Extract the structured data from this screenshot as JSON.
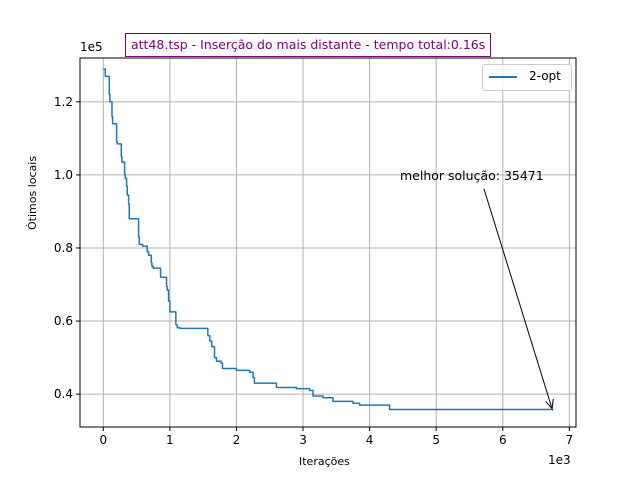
{
  "chart_data": {
    "type": "line",
    "title": "att48.tsp - Inserção do mais distante - tempo total:0.16s",
    "xlabel": "Iterações",
    "ylabel": "Ótimos locais",
    "x_multiplier": "1e3",
    "y_multiplier": "1e5",
    "xlim": [
      -0.35,
      7.1
    ],
    "ylim": [
      0.31,
      1.32
    ],
    "x_ticks": [
      "0",
      "1",
      "2",
      "3",
      "4",
      "5",
      "6",
      "7"
    ],
    "y_ticks": [
      "0.4",
      "0.6",
      "0.8",
      "1.0",
      "1.2"
    ],
    "grid": true,
    "legend_position": "top-right",
    "series": [
      {
        "name": "2-opt",
        "color": "#1f77b4",
        "x": [
          0,
          0.03,
          0.05,
          0.09,
          0.1,
          0.13,
          0.14,
          0.17,
          0.2,
          0.21,
          0.27,
          0.28,
          0.32,
          0.33,
          0.35,
          0.36,
          0.38,
          0.39,
          0.41,
          0.44,
          0.46,
          0.53,
          0.54,
          0.58,
          0.59,
          0.66,
          0.68,
          0.72,
          0.73,
          0.75,
          0.83,
          0.86,
          0.95,
          0.96,
          0.98,
          1.0,
          1.03,
          1.09,
          1.11,
          1.15,
          1.3,
          1.55,
          1.57,
          1.6,
          1.63,
          1.67,
          1.7,
          1.77,
          1.79,
          1.9,
          2.0,
          2.1,
          2.2,
          2.25,
          2.27,
          2.55,
          2.6,
          2.9,
          3.1,
          3.15,
          3.3,
          3.45,
          3.75,
          3.85,
          4.2,
          4.3,
          6.75
        ],
        "y": [
          1.29,
          1.27,
          1.27,
          1.22,
          1.2,
          1.16,
          1.14,
          1.14,
          1.09,
          1.085,
          1.05,
          1.035,
          1.0,
          0.99,
          0.97,
          0.945,
          0.92,
          0.88,
          0.88,
          0.88,
          0.88,
          0.83,
          0.81,
          0.81,
          0.805,
          0.79,
          0.78,
          0.76,
          0.75,
          0.745,
          0.745,
          0.72,
          0.695,
          0.685,
          0.655,
          0.625,
          0.625,
          0.59,
          0.582,
          0.58,
          0.58,
          0.58,
          0.56,
          0.545,
          0.53,
          0.5,
          0.49,
          0.485,
          0.47,
          0.47,
          0.465,
          0.465,
          0.46,
          0.445,
          0.43,
          0.43,
          0.418,
          0.415,
          0.41,
          0.395,
          0.39,
          0.38,
          0.375,
          0.37,
          0.37,
          0.358,
          0.3547
        ]
      }
    ],
    "annotation": {
      "text": "melhor solução: 35471",
      "point": [
        6.75,
        0.3547
      ]
    }
  }
}
